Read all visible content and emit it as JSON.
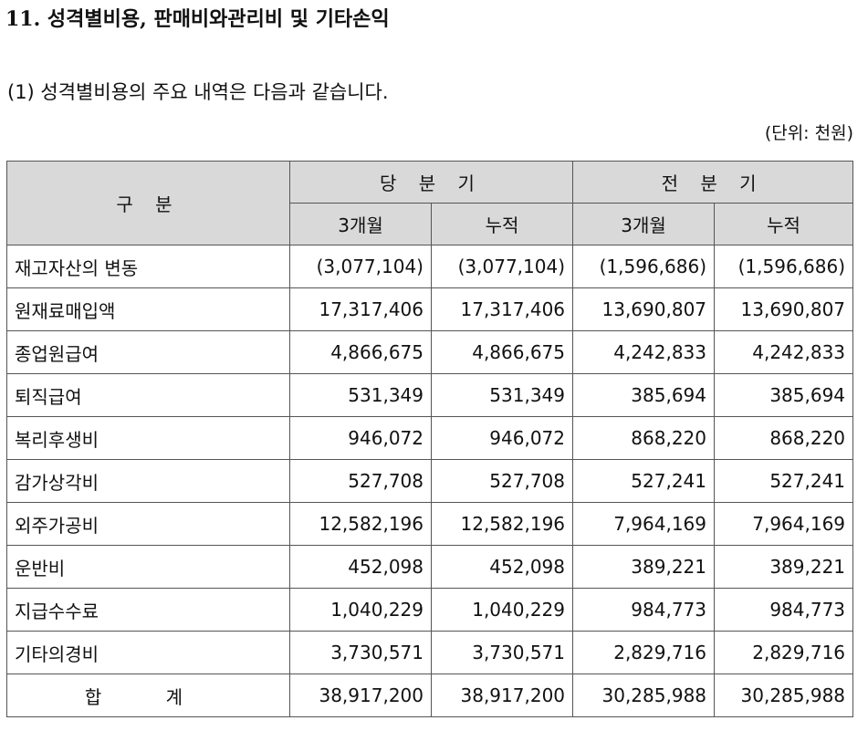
{
  "section_title": "11. 성격별비용, 판매비와관리비 및 기타손익",
  "sub_heading": "(1) 성격별비용의 주요 내역은 다음과 같습니다.",
  "unit": "(단위: 천원)",
  "table": {
    "category_header": "구 분",
    "current_period": "당 분 기",
    "prior_period": "전 분 기",
    "sub_headers": [
      "3개월",
      "누적",
      "3개월",
      "누적"
    ],
    "rows": [
      {
        "item": "재고자산의 변동",
        "values": [
          "(3,077,104)",
          "(3,077,104)",
          "(1,596,686)",
          "(1,596,686)"
        ]
      },
      {
        "item": "원재료매입액",
        "values": [
          "17,317,406",
          "17,317,406",
          "13,690,807",
          "13,690,807"
        ]
      },
      {
        "item": "종업원급여",
        "values": [
          "4,866,675",
          "4,866,675",
          "4,242,833",
          "4,242,833"
        ]
      },
      {
        "item": "퇴직급여",
        "values": [
          "531,349",
          "531,349",
          "385,694",
          "385,694"
        ]
      },
      {
        "item": "복리후생비",
        "values": [
          "946,072",
          "946,072",
          "868,220",
          "868,220"
        ]
      },
      {
        "item": "감가상각비",
        "values": [
          "527,708",
          "527,708",
          "527,241",
          "527,241"
        ]
      },
      {
        "item": "외주가공비",
        "values": [
          "12,582,196",
          "12,582,196",
          "7,964,169",
          "7,964,169"
        ]
      },
      {
        "item": "운반비",
        "values": [
          "452,098",
          "452,098",
          "389,221",
          "389,221"
        ]
      },
      {
        "item": "지급수수료",
        "values": [
          "1,040,229",
          "1,040,229",
          "984,773",
          "984,773"
        ]
      },
      {
        "item": "기타의경비",
        "values": [
          "3,730,571",
          "3,730,571",
          "2,829,716",
          "2,829,716"
        ]
      }
    ],
    "total": {
      "label": "합 계",
      "values": [
        "38,917,200",
        "38,917,200",
        "30,285,988",
        "30,285,988"
      ]
    }
  }
}
